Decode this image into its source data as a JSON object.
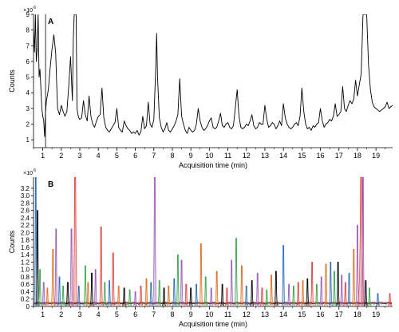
{
  "chart_data": [
    {
      "type": "line",
      "panel": "A",
      "title": "",
      "xlabel": "Acquisition time (min)",
      "ylabel": "Counts",
      "y_multiplier": "×10",
      "y_exponent": "6",
      "xlim": [
        0.5,
        19.9
      ],
      "ylim": [
        0.5,
        9
      ],
      "x_ticks": [
        "1",
        "2",
        "3",
        "4",
        "5",
        "6",
        "7",
        "8",
        "9",
        "10",
        "11",
        "12",
        "13",
        "14",
        "15",
        "16",
        "17",
        "18",
        "19"
      ],
      "y_ticks": [
        "1",
        "2",
        "3",
        "4",
        "5",
        "6",
        "7",
        "8",
        "9"
      ],
      "grid": false,
      "series": [
        {
          "color": "#000000",
          "x": [
            0.5,
            0.55,
            0.6,
            0.65,
            0.7,
            0.75,
            0.8,
            0.85,
            0.9,
            0.95,
            1.0,
            1.05,
            1.1,
            1.15,
            1.2,
            1.3,
            1.4,
            1.5,
            1.6,
            1.7,
            1.75,
            1.8,
            1.9,
            2.0,
            2.1,
            2.2,
            2.3,
            2.4,
            2.5,
            2.6,
            2.65,
            2.7,
            2.75,
            2.8,
            2.85,
            2.9,
            2.95,
            3.0,
            3.1,
            3.2,
            3.3,
            3.4,
            3.5,
            3.6,
            3.7,
            3.8,
            3.9,
            4.0,
            4.1,
            4.2,
            4.3,
            4.4,
            4.5,
            4.6,
            4.7,
            4.8,
            4.9,
            5.0,
            5.1,
            5.2,
            5.3,
            5.4,
            5.5,
            5.6,
            5.7,
            5.8,
            5.9,
            6.0,
            6.1,
            6.2,
            6.3,
            6.4,
            6.5,
            6.6,
            6.7,
            6.8,
            6.9,
            7.0,
            7.1,
            7.15,
            7.2,
            7.3,
            7.4,
            7.5,
            7.6,
            7.7,
            7.8,
            7.9,
            8.0,
            8.1,
            8.2,
            8.3,
            8.4,
            8.5,
            8.6,
            8.7,
            8.8,
            8.9,
            9.0,
            9.1,
            9.2,
            9.3,
            9.4,
            9.5,
            9.6,
            9.7,
            9.8,
            9.9,
            10.0,
            10.1,
            10.2,
            10.3,
            10.4,
            10.5,
            10.6,
            10.7,
            10.8,
            10.9,
            11.0,
            11.1,
            11.2,
            11.3,
            11.4,
            11.5,
            11.6,
            11.7,
            11.8,
            11.9,
            12.0,
            12.1,
            12.2,
            12.3,
            12.4,
            12.5,
            12.6,
            12.7,
            12.8,
            12.9,
            13.0,
            13.1,
            13.2,
            13.3,
            13.4,
            13.5,
            13.6,
            13.7,
            13.8,
            13.9,
            14.0,
            14.1,
            14.2,
            14.3,
            14.4,
            14.5,
            14.6,
            14.7,
            14.8,
            14.9,
            15.0,
            15.1,
            15.2,
            15.3,
            15.4,
            15.5,
            15.6,
            15.7,
            15.8,
            15.9,
            16.0,
            16.1,
            16.2,
            16.3,
            16.4,
            16.5,
            16.6,
            16.7,
            16.8,
            16.9,
            17.0,
            17.1,
            17.2,
            17.3,
            17.4,
            17.5,
            17.6,
            17.7,
            17.8,
            17.9,
            18.0,
            18.1,
            18.2,
            18.25,
            18.3,
            18.4,
            18.5,
            18.6,
            18.7,
            18.8,
            18.9,
            19.0,
            19.1,
            19.2,
            19.3,
            19.4,
            19.5,
            19.6,
            19.7,
            19.8,
            19.9
          ],
          "y": [
            8.0,
            6.6,
            9.0,
            6.0,
            6.8,
            9.0,
            5.0,
            5.5,
            4.2,
            3.0,
            2.5,
            2.2,
            1.2,
            2.8,
            3.5,
            4.2,
            5.6,
            6.8,
            7.7,
            6.5,
            4.6,
            3.0,
            2.6,
            3.2,
            2.8,
            2.5,
            2.8,
            4.4,
            6.3,
            3.5,
            7.5,
            9.0,
            9.0,
            9.0,
            3.0,
            2.6,
            2.4,
            2.3,
            2.4,
            3.5,
            2.6,
            2.2,
            3.8,
            2.5,
            2.0,
            1.8,
            2.2,
            2.5,
            2.6,
            4.3,
            2.4,
            1.8,
            1.6,
            1.5,
            1.7,
            1.9,
            2.1,
            3.0,
            1.8,
            1.6,
            1.5,
            2.2,
            1.9,
            1.7,
            1.6,
            1.4,
            1.5,
            1.4,
            1.6,
            1.3,
            1.5,
            2.5,
            1.7,
            1.9,
            3.4,
            2.0,
            1.8,
            2.3,
            5.5,
            7.8,
            5.0,
            2.4,
            1.8,
            1.5,
            1.7,
            2.1,
            1.6,
            1.5,
            1.7,
            1.9,
            2.2,
            2.6,
            4.9,
            2.5,
            2.0,
            1.6,
            1.4,
            1.8,
            1.6,
            1.5,
            1.6,
            2.0,
            3.0,
            2.2,
            1.8,
            1.6,
            1.7,
            1.9,
            2.2,
            2.4,
            1.8,
            1.7,
            1.8,
            2.2,
            2.7,
            1.9,
            1.8,
            2.0,
            2.1,
            1.8,
            1.7,
            1.9,
            3.0,
            4.2,
            2.5,
            1.8,
            1.7,
            1.8,
            2.0,
            1.9,
            2.2,
            2.6,
            1.9,
            1.7,
            1.8,
            2.1,
            2.0,
            2.0,
            3.2,
            2.3,
            1.8,
            1.9,
            2.1,
            2.0,
            1.7,
            1.9,
            2.2,
            1.9,
            3.3,
            2.4,
            2.0,
            1.8,
            1.7,
            1.8,
            2.0,
            2.1,
            1.9,
            2.5,
            4.3,
            2.8,
            2.0,
            1.7,
            1.8,
            1.6,
            1.9,
            1.8,
            2.0,
            2.1,
            3.0,
            2.2,
            1.8,
            2.0,
            2.1,
            2.3,
            2.2,
            2.5,
            3.3,
            2.5,
            2.6,
            2.8,
            4.4,
            3.0,
            2.8,
            3.2,
            3.5,
            3.3,
            3.6,
            4.8,
            3.8,
            4.5,
            5.2,
            7.0,
            9.0,
            9.0,
            9.0,
            5.8,
            4.2,
            3.4,
            3.1,
            3.0,
            2.9,
            2.8,
            2.9,
            3.0,
            3.1,
            3.4,
            3.0,
            3.1,
            3.2
          ]
        }
      ]
    },
    {
      "type": "line",
      "panel": "B",
      "title": "",
      "xlabel": "Acquisition time (min)",
      "ylabel": "Counts",
      "y_multiplier": "×10",
      "y_exponent": "6",
      "xlim": [
        0.5,
        19.9
      ],
      "ylim": [
        0,
        3.5
      ],
      "x_ticks": [
        "1",
        "2",
        "3",
        "4",
        "5",
        "6",
        "7",
        "8",
        "9",
        "10",
        "11",
        "12",
        "13",
        "14",
        "15",
        "16",
        "17",
        "18",
        "19"
      ],
      "y_ticks": [
        "0",
        "0.2",
        "0.4",
        "0.6",
        "0.8",
        "1.0",
        "1.2",
        "1.4",
        "1.6",
        "1.8",
        "2.0",
        "2.2",
        "2.4",
        "2.6",
        "2.8",
        "3.0",
        "3.2"
      ],
      "grid": false,
      "peaks": [
        {
          "x": 0.62,
          "y": 3.5,
          "w": 0.05,
          "color": "#2a6db5"
        },
        {
          "x": 0.72,
          "y": 2.6,
          "w": 0.04,
          "color": "#000000"
        },
        {
          "x": 0.85,
          "y": 1.0,
          "w": 0.05,
          "color": "#3aa64c"
        },
        {
          "x": 1.05,
          "y": 0.65,
          "w": 0.06,
          "color": "#9b59b6"
        },
        {
          "x": 1.25,
          "y": 0.5,
          "w": 0.05,
          "color": "#e06c1e"
        },
        {
          "x": 1.55,
          "y": 1.55,
          "w": 0.06,
          "color": "#e06c1e"
        },
        {
          "x": 1.72,
          "y": 2.1,
          "w": 0.05,
          "color": "#9b59b6"
        },
        {
          "x": 1.9,
          "y": 0.8,
          "w": 0.05,
          "color": "#2a6db5"
        },
        {
          "x": 2.1,
          "y": 0.55,
          "w": 0.05,
          "color": "#3aa64c"
        },
        {
          "x": 2.35,
          "y": 0.65,
          "w": 0.06,
          "color": "#000000"
        },
        {
          "x": 2.55,
          "y": 2.1,
          "w": 0.06,
          "color": "#9b59b6"
        },
        {
          "x": 2.75,
          "y": 3.5,
          "w": 0.08,
          "color": "#e0413c"
        },
        {
          "x": 2.95,
          "y": 0.55,
          "w": 0.05,
          "color": "#2a6db5"
        },
        {
          "x": 3.3,
          "y": 1.1,
          "w": 0.05,
          "color": "#3aa64c"
        },
        {
          "x": 3.45,
          "y": 0.65,
          "w": 0.05,
          "color": "#e06c1e"
        },
        {
          "x": 3.65,
          "y": 0.9,
          "w": 0.05,
          "color": "#000000"
        },
        {
          "x": 3.85,
          "y": 1.0,
          "w": 0.05,
          "color": "#9b59b6"
        },
        {
          "x": 4.15,
          "y": 2.15,
          "w": 0.05,
          "color": "#e0413c"
        },
        {
          "x": 4.35,
          "y": 0.65,
          "w": 0.05,
          "color": "#3aa64c"
        },
        {
          "x": 4.6,
          "y": 0.7,
          "w": 0.05,
          "color": "#2a6db5"
        },
        {
          "x": 4.8,
          "y": 1.45,
          "w": 0.05,
          "color": "#e0413c"
        },
        {
          "x": 5.1,
          "y": 0.55,
          "w": 0.05,
          "color": "#e06c1e"
        },
        {
          "x": 5.4,
          "y": 0.5,
          "w": 0.05,
          "color": "#000000"
        },
        {
          "x": 5.7,
          "y": 0.45,
          "w": 0.05,
          "color": "#3aa64c"
        },
        {
          "x": 6.0,
          "y": 0.4,
          "w": 0.05,
          "color": "#9b59b6"
        },
        {
          "x": 6.3,
          "y": 0.55,
          "w": 0.05,
          "color": "#e0413c"
        },
        {
          "x": 6.6,
          "y": 0.75,
          "w": 0.05,
          "color": "#e06c1e"
        },
        {
          "x": 6.85,
          "y": 0.65,
          "w": 0.05,
          "color": "#2a6db5"
        },
        {
          "x": 7.05,
          "y": 3.5,
          "w": 0.06,
          "color": "#9b59b6"
        },
        {
          "x": 7.3,
          "y": 0.7,
          "w": 0.05,
          "color": "#3aa64c"
        },
        {
          "x": 7.55,
          "y": 0.5,
          "w": 0.05,
          "color": "#000000"
        },
        {
          "x": 7.8,
          "y": 0.55,
          "w": 0.05,
          "color": "#e06c1e"
        },
        {
          "x": 8.1,
          "y": 0.75,
          "w": 0.05,
          "color": "#2a6db5"
        },
        {
          "x": 8.3,
          "y": 1.4,
          "w": 0.05,
          "color": "#3aa64c"
        },
        {
          "x": 8.5,
          "y": 1.25,
          "w": 0.05,
          "color": "#9b59b6"
        },
        {
          "x": 8.75,
          "y": 0.6,
          "w": 0.05,
          "color": "#e0413c"
        },
        {
          "x": 9.0,
          "y": 0.5,
          "w": 0.05,
          "color": "#000000"
        },
        {
          "x": 9.3,
          "y": 0.6,
          "w": 0.05,
          "color": "#2a6db5"
        },
        {
          "x": 9.55,
          "y": 1.7,
          "w": 0.05,
          "color": "#e06c1e"
        },
        {
          "x": 9.8,
          "y": 0.8,
          "w": 0.05,
          "color": "#3aa64c"
        },
        {
          "x": 10.1,
          "y": 0.5,
          "w": 0.05,
          "color": "#9b59b6"
        },
        {
          "x": 10.4,
          "y": 0.95,
          "w": 0.05,
          "color": "#e06c1e"
        },
        {
          "x": 10.7,
          "y": 0.6,
          "w": 0.05,
          "color": "#000000"
        },
        {
          "x": 10.95,
          "y": 0.5,
          "w": 0.05,
          "color": "#e0413c"
        },
        {
          "x": 11.2,
          "y": 1.25,
          "w": 0.05,
          "color": "#9b59b6"
        },
        {
          "x": 11.45,
          "y": 1.85,
          "w": 0.05,
          "color": "#3aa64c"
        },
        {
          "x": 11.75,
          "y": 1.1,
          "w": 0.05,
          "color": "#e06c1e"
        },
        {
          "x": 12.0,
          "y": 0.55,
          "w": 0.05,
          "color": "#2a6db5"
        },
        {
          "x": 12.3,
          "y": 0.7,
          "w": 0.05,
          "color": "#000000"
        },
        {
          "x": 12.6,
          "y": 0.9,
          "w": 0.05,
          "color": "#9b59b6"
        },
        {
          "x": 12.85,
          "y": 0.5,
          "w": 0.05,
          "color": "#e0413c"
        },
        {
          "x": 13.1,
          "y": 0.45,
          "w": 0.05,
          "color": "#3aa64c"
        },
        {
          "x": 13.35,
          "y": 0.85,
          "w": 0.05,
          "color": "#e06c1e"
        },
        {
          "x": 13.6,
          "y": 0.95,
          "w": 0.05,
          "color": "#000000"
        },
        {
          "x": 14.0,
          "y": 1.65,
          "w": 0.05,
          "color": "#2a6db5"
        },
        {
          "x": 14.3,
          "y": 0.6,
          "w": 0.05,
          "color": "#9b59b6"
        },
        {
          "x": 14.55,
          "y": 0.55,
          "w": 0.05,
          "color": "#3aa64c"
        },
        {
          "x": 14.8,
          "y": 0.65,
          "w": 0.05,
          "color": "#e0413c"
        },
        {
          "x": 15.05,
          "y": 0.7,
          "w": 0.05,
          "color": "#e06c1e"
        },
        {
          "x": 15.3,
          "y": 0.75,
          "w": 0.05,
          "color": "#000000"
        },
        {
          "x": 15.55,
          "y": 1.2,
          "w": 0.05,
          "color": "#e0413c"
        },
        {
          "x": 15.8,
          "y": 0.6,
          "w": 0.05,
          "color": "#3aa64c"
        },
        {
          "x": 16.05,
          "y": 0.8,
          "w": 0.05,
          "color": "#9b59b6"
        },
        {
          "x": 16.3,
          "y": 1.15,
          "w": 0.05,
          "color": "#e06c1e"
        },
        {
          "x": 16.55,
          "y": 1.2,
          "w": 0.05,
          "color": "#2a6db5"
        },
        {
          "x": 16.75,
          "y": 0.95,
          "w": 0.05,
          "color": "#3aa64c"
        },
        {
          "x": 16.95,
          "y": 1.2,
          "w": 0.05,
          "color": "#000000"
        },
        {
          "x": 17.15,
          "y": 0.85,
          "w": 0.05,
          "color": "#9b59b6"
        },
        {
          "x": 17.35,
          "y": 0.65,
          "w": 0.05,
          "color": "#e0413c"
        },
        {
          "x": 17.55,
          "y": 0.9,
          "w": 0.05,
          "color": "#2a6db5"
        },
        {
          "x": 17.8,
          "y": 1.55,
          "w": 0.05,
          "color": "#e06c1e"
        },
        {
          "x": 18.0,
          "y": 2.2,
          "w": 0.05,
          "color": "#9b59b6"
        },
        {
          "x": 18.2,
          "y": 3.5,
          "w": 0.1,
          "color": "#e0413c"
        },
        {
          "x": 18.3,
          "y": 3.5,
          "w": 0.05,
          "color": "#9b59b6"
        },
        {
          "x": 18.45,
          "y": 0.7,
          "w": 0.05,
          "color": "#000000"
        },
        {
          "x": 18.65,
          "y": 0.5,
          "w": 0.05,
          "color": "#3aa64c"
        },
        {
          "x": 19.1,
          "y": 0.35,
          "w": 0.05,
          "color": "#2a6db5"
        },
        {
          "x": 19.75,
          "y": 0.35,
          "w": 0.05,
          "color": "#e0413c"
        }
      ]
    }
  ],
  "colors": {
    "axis": "#000000",
    "trace_a": "#000000"
  }
}
